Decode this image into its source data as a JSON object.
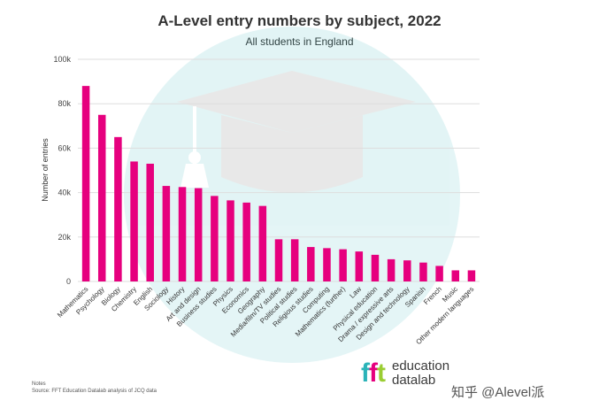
{
  "chart_data": {
    "type": "bar",
    "title": "A-Level entry numbers by subject, 2022",
    "subtitle": "All students in England",
    "xlabel": "",
    "ylabel": "Number of entries",
    "ylim": [
      0,
      100000
    ],
    "yticks": [
      0,
      20000,
      40000,
      60000,
      80000,
      100000
    ],
    "ytick_labels": [
      "0",
      "20k",
      "40k",
      "60k",
      "80k",
      "100k"
    ],
    "grid": true,
    "bar_color": "#e6007e",
    "categories": [
      "Mathematics",
      "Psychology",
      "Biology",
      "Chemistry",
      "English",
      "Sociology",
      "History",
      "Art and design",
      "Business studies",
      "Physics",
      "Economics",
      "Geography",
      "Media/film/TV studies",
      "Political studies",
      "Religious studies",
      "Computing",
      "Mathematics (further)",
      "Law",
      "Physical education",
      "Drama / expressive arts",
      "Design and technology",
      "Spanish",
      "French",
      "Music",
      "Other modern languages"
    ],
    "values": [
      88000,
      75000,
      65000,
      54000,
      53000,
      43000,
      42500,
      42000,
      38500,
      36500,
      35500,
      34000,
      19000,
      19000,
      15500,
      15000,
      14500,
      13500,
      12000,
      10000,
      9500,
      8500,
      7000,
      5000,
      5000
    ]
  },
  "notes": {
    "heading": "Notes",
    "source": "Source: FFT Education Datalab analysis of JCQ data"
  },
  "logo": {
    "f1": "f",
    "f2": "f",
    "t": "t",
    "line1": "education",
    "line2": "datalab"
  },
  "watermark": "知乎 @Alevel派"
}
